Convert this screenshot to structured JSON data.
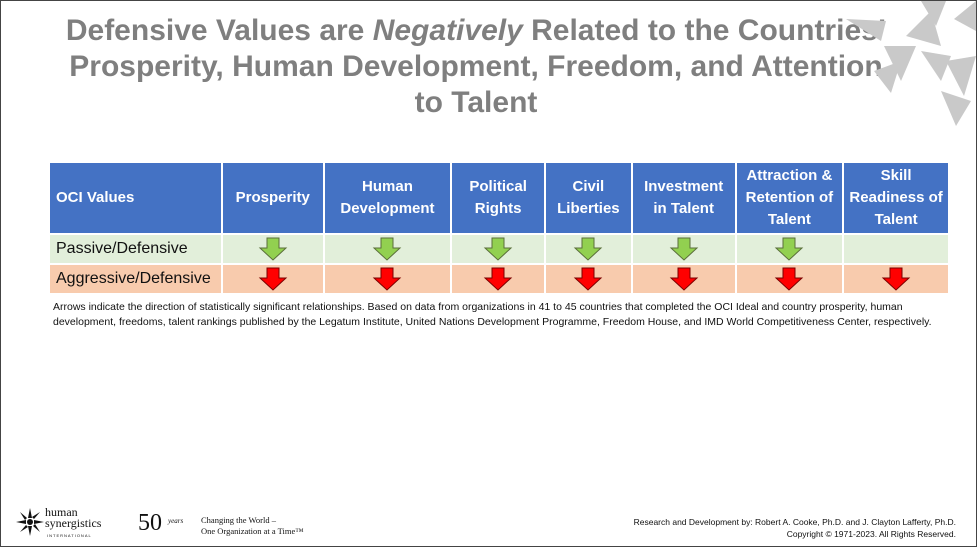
{
  "title": {
    "part1": "Defensive Values are ",
    "emphasis": "Negatively",
    "part2": " Related to the Countries’ Prosperity, Human Development, Freedom, and Attention to Talent"
  },
  "table": {
    "header": {
      "c0": "OCI Values",
      "c1": "Prosperity",
      "c2": "Human Development",
      "c3": "Political Rights",
      "c4": "Civil Liberties",
      "c5": "Investment in Talent",
      "c6": "Attraction & Retention of Talent",
      "c7": "Skill Readiness of Talent"
    },
    "rows": [
      {
        "label": "Passive/Defensive",
        "arrow_color": "#92d050",
        "arrows": [
          true,
          true,
          true,
          true,
          true,
          true,
          false
        ]
      },
      {
        "label": "Aggressive/Defensive",
        "arrow_color": "#ff0000",
        "arrows": [
          true,
          true,
          true,
          true,
          true,
          true,
          true
        ]
      }
    ],
    "colors": {
      "header_bg": "#4472c4",
      "passive_bg": "#e2efda",
      "aggressive_bg": "#f8cbad"
    }
  },
  "note": "Arrows indicate the direction of statistically significant relationships. Based on data from organizations in 41 to 45 countries that completed the OCI Ideal and country prosperity, human development, freedoms, talent rankings published by the Legatum Institute, United Nations Development Programme, Freedom House, and IMD World Competitiveness Center, respectively.",
  "footer": {
    "logo_line1": "human",
    "logo_line2": "synergistics",
    "logo_sub": "INTERNATIONAL",
    "fifty": "50",
    "years": "years",
    "tagline_line1": "Changing the World –",
    "tagline_line2": "One Organization at a Time™",
    "credit_line1": "Research and Development by: Robert A. Cooke, Ph.D. and J. Clayton Lafferty, Ph.D.",
    "credit_line2": "Copyright © 1971-2023.  All Rights Reserved."
  },
  "icons": {
    "logo": "starburst-logo-icon",
    "decoration": "arrows-star-icon",
    "arrow": "down-arrow-icon"
  }
}
